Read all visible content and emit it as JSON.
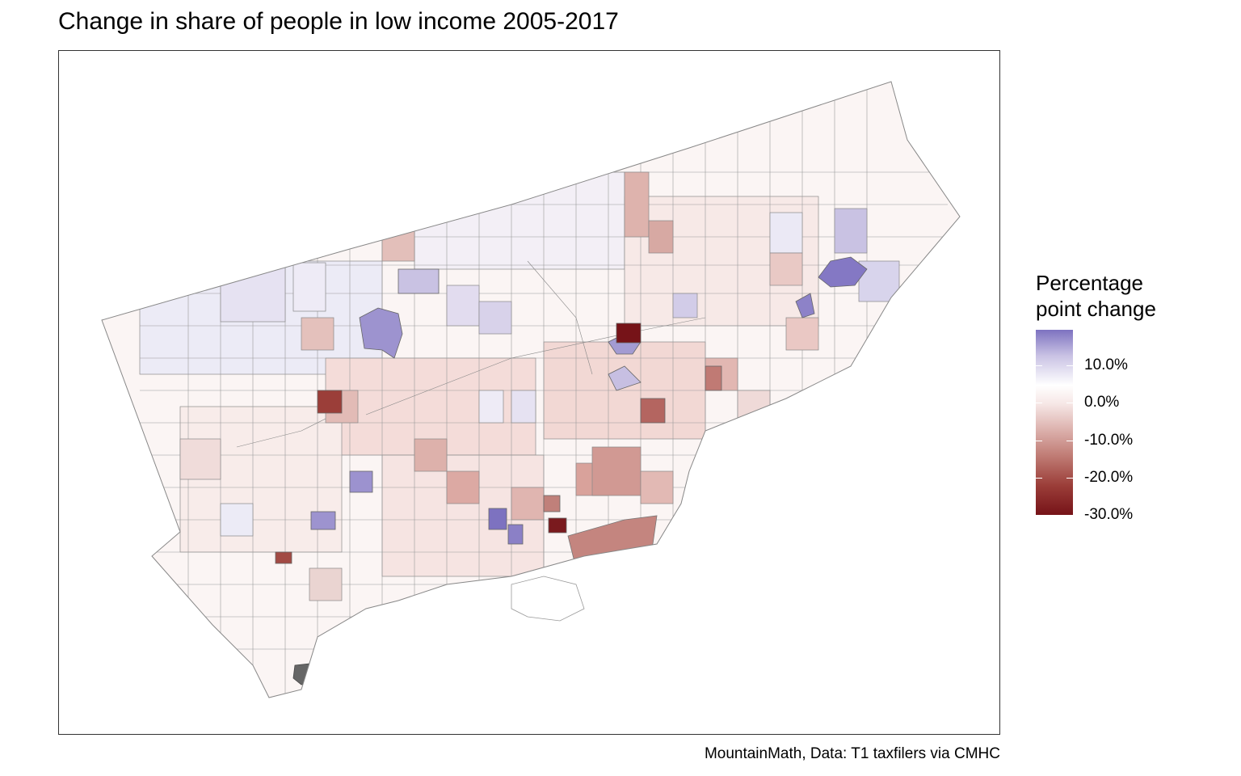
{
  "title": "Change in share of people in low income 2005-2017",
  "caption": "MountainMath, Data: T1 taxfilers via CMHC",
  "legend": {
    "title_line1": "Percentage",
    "title_line2": "point change",
    "ticks": [
      "10.0%",
      "0.0%",
      "-10.0%",
      "-20.0%",
      "-30.0%"
    ]
  },
  "colors": {
    "max_positive": "#7d72c0",
    "zero": "#ffffff",
    "max_negative": "#761318",
    "missing": "#666666",
    "boundary": "#888888"
  }
}
